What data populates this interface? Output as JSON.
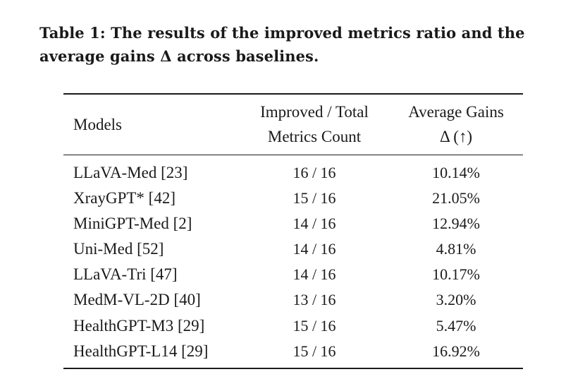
{
  "caption": {
    "line1": "Table 1: The results of the improved metrics ratio and the",
    "line2": "average gains Δ across baselines."
  },
  "table": {
    "headers": {
      "models": "Models",
      "improved_line1": "Improved / Total",
      "improved_line2": "Metrics Count",
      "gains_line1": "Average Gains",
      "gains_line2": "Δ (↑)"
    },
    "rows": [
      {
        "model": "LLaVA-Med [23]",
        "count": "16 / 16",
        "gain": "10.14%"
      },
      {
        "model": "XrayGPT* [42]",
        "count": "15 / 16",
        "gain": "21.05%"
      },
      {
        "model": "MiniGPT-Med [2]",
        "count": "14 / 16",
        "gain": "12.94%"
      },
      {
        "model": "Uni-Med [52]",
        "count": "14 / 16",
        "gain": "4.81%"
      },
      {
        "model": "LLaVA-Tri [47]",
        "count": "14 / 16",
        "gain": "10.17%"
      },
      {
        "model": "MedM-VL-2D [40]",
        "count": "13 / 16",
        "gain": "3.20%"
      },
      {
        "model": "HealthGPT-M3 [29]",
        "count": "15 / 16",
        "gain": "5.47%"
      },
      {
        "model": "HealthGPT-L14 [29]",
        "count": "15 / 16",
        "gain": "16.92%"
      }
    ]
  }
}
